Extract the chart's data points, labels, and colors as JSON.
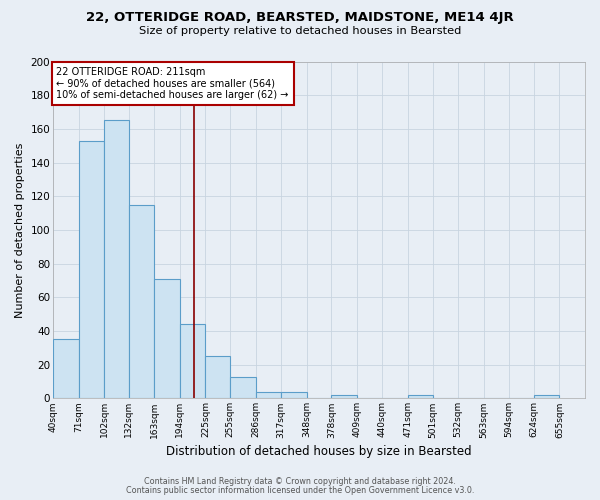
{
  "title1": "22, OTTERIDGE ROAD, BEARSTED, MAIDSTONE, ME14 4JR",
  "title2": "Size of property relative to detached houses in Bearsted",
  "xlabel": "Distribution of detached houses by size in Bearsted",
  "ylabel": "Number of detached properties",
  "bar_color": "#cde3f2",
  "bar_edge_color": "#5b9dc9",
  "background_color": "#e8eef5",
  "plot_bg_color": "#e8eef5",
  "grid_color": "#c8d4e0",
  "bin_edges": [
    40,
    71,
    102,
    132,
    163,
    194,
    225,
    255,
    286,
    317,
    348,
    378,
    409,
    440,
    471,
    501,
    532,
    563,
    594,
    624,
    655
  ],
  "bar_heights": [
    35,
    153,
    165,
    115,
    71,
    44,
    25,
    13,
    4,
    4,
    0,
    2,
    0,
    0,
    2,
    0,
    0,
    0,
    0,
    2
  ],
  "red_line_x": 211,
  "annotation_title": "22 OTTERIDGE ROAD: 211sqm",
  "annotation_line1": "← 90% of detached houses are smaller (564)",
  "annotation_line2": "10% of semi-detached houses are larger (62) →",
  "annotation_box_color": "#ffffff",
  "annotation_edge_color": "#aa0000",
  "red_line_color": "#880000",
  "footer1": "Contains HM Land Registry data © Crown copyright and database right 2024.",
  "footer2": "Contains public sector information licensed under the Open Government Licence v3.0.",
  "ylim": [
    0,
    200
  ],
  "yticks": [
    0,
    20,
    40,
    60,
    80,
    100,
    120,
    140,
    160,
    180,
    200
  ],
  "tick_labels": [
    "40sqm",
    "71sqm",
    "102sqm",
    "132sqm",
    "163sqm",
    "194sqm",
    "225sqm",
    "255sqm",
    "286sqm",
    "317sqm",
    "348sqm",
    "378sqm",
    "409sqm",
    "440sqm",
    "471sqm",
    "501sqm",
    "532sqm",
    "563sqm",
    "594sqm",
    "624sqm",
    "655sqm"
  ]
}
